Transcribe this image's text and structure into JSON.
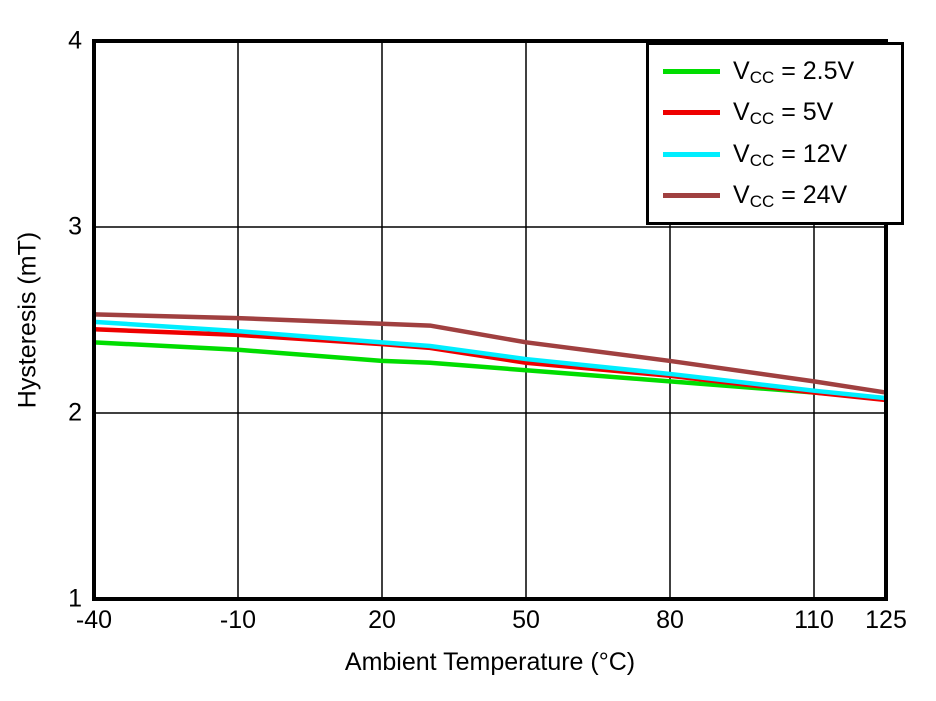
{
  "page": {
    "background": "#ffffff",
    "axis_color": "#000000",
    "grid_color": "#000000"
  },
  "chart_data": {
    "type": "line",
    "title": "",
    "xlabel": "Ambient Temperature (°C)",
    "ylabel": "Hysteresis (mT)",
    "xlim": [
      -40,
      125
    ],
    "ylim": [
      1,
      4
    ],
    "x_ticks": [
      -40,
      -10,
      20,
      50,
      80,
      110,
      125
    ],
    "y_ticks": [
      1,
      2,
      3,
      4
    ],
    "grid": true,
    "legend_position": "top-right",
    "x": [
      -40,
      -10,
      20,
      30,
      50,
      80,
      110,
      125
    ],
    "series": [
      {
        "name": "VCC = 2.5V",
        "legend": {
          "sym": "V",
          "sub": "CC",
          "eq": " = 2.5V"
        },
        "color": "#00dd00",
        "values": [
          2.38,
          2.34,
          2.28,
          2.27,
          2.23,
          2.17,
          2.11,
          2.08
        ]
      },
      {
        "name": "VCC = 5V",
        "legend": {
          "sym": "V",
          "sub": "CC",
          "eq": " = 5V"
        },
        "color": "#ee0000",
        "values": [
          2.45,
          2.42,
          2.37,
          2.35,
          2.27,
          2.2,
          2.11,
          2.07
        ]
      },
      {
        "name": "VCC = 12V",
        "legend": {
          "sym": "V",
          "sub": "CC",
          "eq": " = 12V"
        },
        "color": "#00eeff",
        "values": [
          2.49,
          2.44,
          2.38,
          2.36,
          2.29,
          2.21,
          2.12,
          2.08
        ]
      },
      {
        "name": "VCC = 24V",
        "legend": {
          "sym": "V",
          "sub": "CC",
          "eq": " = 24V"
        },
        "color": "#a04040",
        "values": [
          2.53,
          2.51,
          2.48,
          2.47,
          2.38,
          2.28,
          2.17,
          2.11
        ]
      }
    ]
  }
}
